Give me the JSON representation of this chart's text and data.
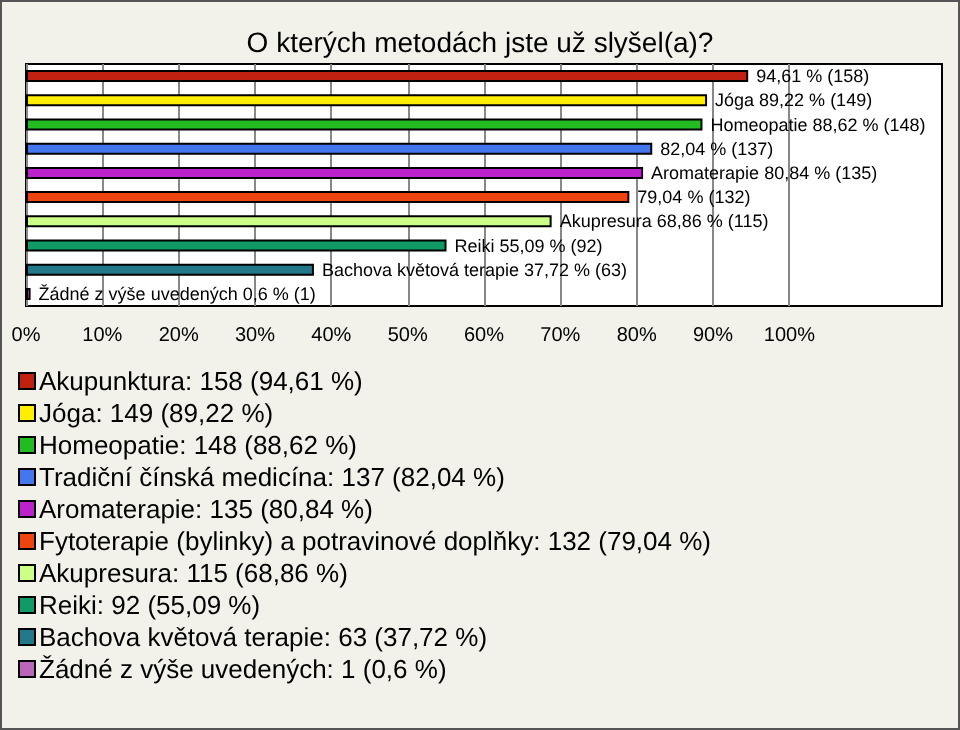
{
  "chart_data": {
    "type": "bar",
    "title": "O kterých metodách jste už slyšel(a)?",
    "orientation": "horizontal",
    "stacked": true,
    "categories": [
      null,
      null,
      null,
      null,
      null,
      null,
      null,
      null,
      null,
      null
    ],
    "xlim": [
      0,
      120
    ],
    "xticks": [
      {
        "value": 0,
        "label": "0%"
      },
      {
        "value": 10,
        "label": "10%"
      },
      {
        "value": 20,
        "label": "20%"
      },
      {
        "value": 30,
        "label": "30%"
      },
      {
        "value": 40,
        "label": "40%"
      },
      {
        "value": 50,
        "label": "50%"
      },
      {
        "value": 60,
        "label": "60%"
      },
      {
        "value": 70,
        "label": "70%"
      },
      {
        "value": 80,
        "label": "80%"
      },
      {
        "value": 90,
        "label": "90%"
      },
      {
        "value": 100,
        "label": "100%"
      }
    ],
    "grid": "x",
    "legend": "bottom",
    "tick_labels": "x",
    "series": [
      {
        "name": "Akupunktura: 158 (94,61 %)",
        "color": "#c0200f",
        "values": [
          94.61,
          null,
          null,
          null,
          null,
          null,
          null,
          null,
          null,
          null
        ],
        "value_labels": [
          "94,61 % (158)",
          null,
          null,
          null,
          null,
          null,
          null,
          null,
          null,
          null
        ]
      },
      {
        "name": "Jóga: 149 (89,22 %)",
        "color": "#ffee00",
        "values": [
          null,
          89.22,
          null,
          null,
          null,
          null,
          null,
          null,
          null,
          null
        ],
        "value_labels": [
          null,
          "Jóga 89,22 % (149)",
          null,
          null,
          null,
          null,
          null,
          null,
          null,
          null
        ]
      },
      {
        "name": "Homeopatie: 148 (88,62 %)",
        "color": "#22bb22",
        "values": [
          null,
          null,
          88.62,
          null,
          null,
          null,
          null,
          null,
          null,
          null
        ],
        "value_labels": [
          null,
          null,
          "Homeopatie 88,62 % (148)",
          null,
          null,
          null,
          null,
          null,
          null,
          null
        ]
      },
      {
        "name": "Tradiční čínská medicína: 137 (82,04 %)",
        "color": "#4477ee",
        "values": [
          null,
          null,
          null,
          82.04,
          null,
          null,
          null,
          null,
          null,
          null
        ],
        "value_labels": [
          null,
          null,
          null,
          "82,04 % (137)",
          null,
          null,
          null,
          null,
          null,
          null
        ]
      },
      {
        "name": "Aromaterapie: 135 (80,84 %)",
        "color": "#bb22cc",
        "values": [
          null,
          null,
          null,
          null,
          80.84,
          null,
          null,
          null,
          null,
          null
        ],
        "value_labels": [
          null,
          null,
          null,
          null,
          "Aromaterapie 80,84 % (135)",
          null,
          null,
          null,
          null,
          null
        ]
      },
      {
        "name": "Fytoterapie (bylinky) a potravinové doplňky: 132 (79,04 %)",
        "color": "#ee4411",
        "values": [
          null,
          null,
          null,
          null,
          null,
          79.04,
          null,
          null,
          null,
          null
        ],
        "value_labels": [
          null,
          null,
          null,
          null,
          null,
          "79,04 % (132)",
          null,
          null,
          null,
          null
        ]
      },
      {
        "name": "Akupresura: 115 (68,86 %)",
        "color": "#ccff88",
        "values": [
          null,
          null,
          null,
          null,
          null,
          null,
          68.86,
          null,
          null,
          null
        ],
        "value_labels": [
          null,
          null,
          null,
          null,
          null,
          null,
          "Akupresura 68,86 % (115)",
          null,
          null,
          null
        ]
      },
      {
        "name": "Reiki: 92 (55,09 %)",
        "color": "#119966",
        "values": [
          null,
          null,
          null,
          null,
          null,
          null,
          null,
          55.09,
          null,
          null
        ],
        "value_labels": [
          null,
          null,
          null,
          null,
          null,
          null,
          null,
          "Reiki 55,09 % (92)",
          null,
          null
        ]
      },
      {
        "name": "Bachova květová terapie: 63 (37,72 %)",
        "color": "#227788",
        "values": [
          null,
          null,
          null,
          null,
          null,
          null,
          null,
          null,
          37.72,
          null
        ],
        "value_labels": [
          null,
          null,
          null,
          null,
          null,
          null,
          null,
          null,
          "Bachova květová terapie 37,72 % (63)",
          null
        ]
      },
      {
        "name": "Žádné z výše uvedených: 1 (0,6 %)",
        "color": "#bb66bb",
        "values": [
          null,
          null,
          null,
          null,
          null,
          null,
          null,
          null,
          null,
          0.6
        ],
        "value_labels": [
          null,
          null,
          null,
          null,
          null,
          null,
          null,
          null,
          null,
          "Žádné z výše uvedených 0,6 % (1)"
        ]
      }
    ]
  }
}
